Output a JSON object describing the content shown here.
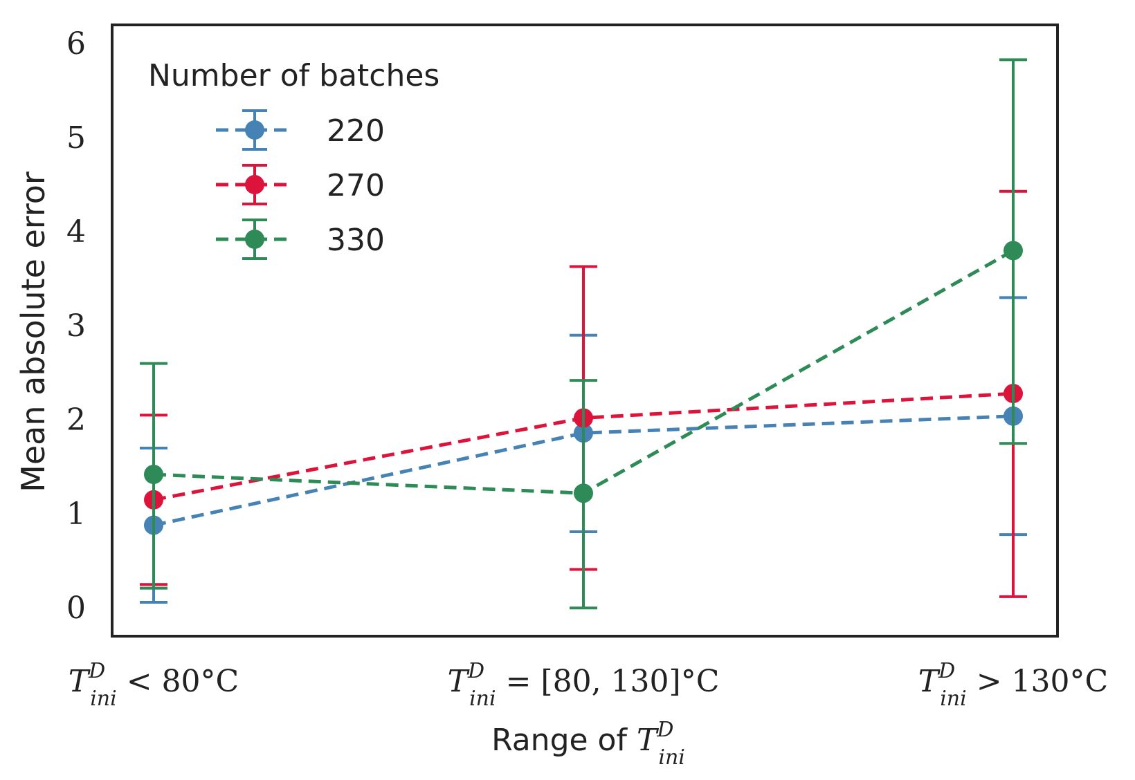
{
  "chart_data": {
    "type": "line",
    "title": "",
    "xlabel": "Range of T_ini^D",
    "ylabel": "Mean absolute error",
    "categories": [
      "T_ini^D < 80°C",
      "T_ini^D = [80, 130]°C",
      "T_ini^D > 130°C"
    ],
    "category_labels": [
      {
        "main": "T",
        "sup": "D",
        "sub": "ini",
        "rest": " < 80°C"
      },
      {
        "main": "T",
        "sup": "D",
        "sub": "ini",
        "rest": " = [80, 130]°C"
      },
      {
        "main": "T",
        "sup": "D",
        "sub": "ini",
        "rest": " > 130°C"
      }
    ],
    "xlabel_parts": {
      "text": "Range of ",
      "main": "T",
      "sup": "D",
      "sub": "ini"
    },
    "ylim": [
      -0.3,
      6.2
    ],
    "yticks": [
      0,
      1,
      2,
      3,
      4,
      5,
      6
    ],
    "grid": false,
    "legend": {
      "title": "Number of batches",
      "position": "top-left"
    },
    "series": [
      {
        "name": "220",
        "color": "#4682b4",
        "values": [
          0.88,
          1.86,
          2.04
        ],
        "err_low": [
          0.06,
          0.81,
          0.78
        ],
        "err_high": [
          1.7,
          2.9,
          3.3
        ]
      },
      {
        "name": "270",
        "color": "#dc143c",
        "values": [
          1.15,
          2.02,
          2.28
        ],
        "err_low": [
          0.25,
          0.41,
          0.12
        ],
        "err_high": [
          2.05,
          3.63,
          4.43
        ]
      },
      {
        "name": "330",
        "color": "#2e8b57",
        "values": [
          1.42,
          1.22,
          3.8
        ],
        "err_low": [
          0.21,
          0.0,
          1.75
        ],
        "err_high": [
          2.6,
          2.42,
          5.83
        ]
      }
    ]
  }
}
